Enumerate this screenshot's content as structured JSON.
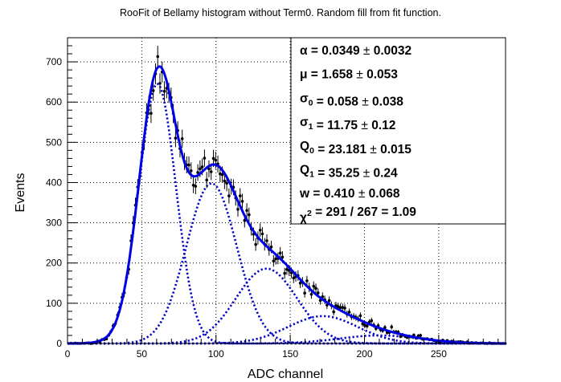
{
  "chart_data": {
    "type": "scatter",
    "title": "RooFit of Bellamy histogram without Term0. Random fill from fit function.",
    "xlabel": "ADC channel",
    "ylabel": "Events",
    "xlim": [
      0,
      295
    ],
    "ylim": [
      0,
      760
    ],
    "x_ticks": [
      "0",
      "50",
      "100",
      "150",
      "200",
      "250"
    ],
    "y_ticks": [
      "0",
      "100",
      "200",
      "300",
      "400",
      "500",
      "600",
      "700"
    ],
    "grid": true,
    "colors": {
      "fit": "#0000e6",
      "components": "#0000cc",
      "data": "#000000"
    },
    "stats": [
      {
        "sym": "α",
        "sub": "",
        "value": "0.0349",
        "error": "0.0032"
      },
      {
        "sym": "μ",
        "sub": "",
        "value": "1.658",
        "error": "0.053"
      },
      {
        "sym": "σ",
        "sub": "0",
        "value": "0.058",
        "error": "0.038"
      },
      {
        "sym": "σ",
        "sub": "1",
        "value": "11.75",
        "error": "0.12"
      },
      {
        "sym": "Q",
        "sub": "0",
        "value": "23.181",
        "error": "0.015"
      },
      {
        "sym": "Q",
        "sub": "1",
        "value": "35.25",
        "error": "0.24"
      },
      {
        "sym": "w",
        "sub": "",
        "value": "0.410",
        "error": "0.068"
      },
      {
        "sym": "χ",
        "sup": "2",
        "value": "291 / 267 = 1.09",
        "error": ""
      }
    ],
    "components": [
      {
        "mean": 60.5,
        "sigma": 12.5,
        "amp": 645
      },
      {
        "mean": 97,
        "sigma": 17,
        "amp": 398
      },
      {
        "mean": 134,
        "sigma": 20.5,
        "amp": 186
      },
      {
        "mean": 172,
        "sigma": 23.5,
        "amp": 68
      },
      {
        "mean": 210,
        "sigma": 27,
        "amp": 20
      }
    ]
  }
}
